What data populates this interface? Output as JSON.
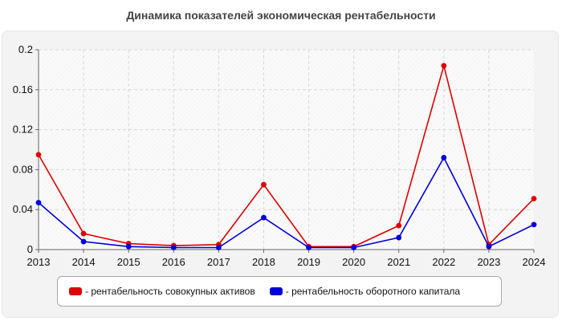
{
  "chart_data": {
    "type": "line",
    "title": "Динамика показателей экономическая рентабельности",
    "xlabel": "",
    "ylabel": "",
    "categories": [
      "2013",
      "2014",
      "2015",
      "2016",
      "2017",
      "2018",
      "2019",
      "2020",
      "2021",
      "2022",
      "2023",
      "2024"
    ],
    "ylim": [
      0,
      0.2
    ],
    "yticks": [
      "0",
      "0.04",
      "0.08",
      "0.12",
      "0.16",
      "0.2"
    ],
    "grid": true,
    "legend_position": "bottom",
    "series": [
      {
        "name": "- рентабельность совокупных активов",
        "color": "#e00000",
        "values": [
          0.095,
          0.016,
          0.006,
          0.004,
          0.005,
          0.065,
          0.003,
          0.003,
          0.024,
          0.184,
          0.005,
          0.051
        ]
      },
      {
        "name": "- рентабельность оборотного капитала",
        "color": "#0000dd",
        "values": [
          0.047,
          0.008,
          0.003,
          0.002,
          0.002,
          0.032,
          0.002,
          0.002,
          0.012,
          0.092,
          0.003,
          0.025
        ]
      }
    ]
  }
}
